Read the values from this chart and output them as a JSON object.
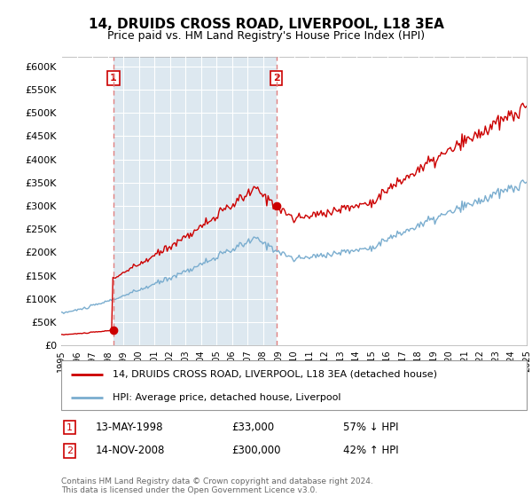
{
  "title": "14, DRUIDS CROSS ROAD, LIVERPOOL, L18 3EA",
  "subtitle": "Price paid vs. HM Land Registry's House Price Index (HPI)",
  "ylim": [
    0,
    620000
  ],
  "yticks": [
    0,
    50000,
    100000,
    150000,
    200000,
    250000,
    300000,
    350000,
    400000,
    450000,
    500000,
    550000,
    600000
  ],
  "ytick_labels": [
    "£0",
    "£50K",
    "£100K",
    "£150K",
    "£200K",
    "£250K",
    "£300K",
    "£350K",
    "£400K",
    "£450K",
    "£500K",
    "£550K",
    "£600K"
  ],
  "xlim_start": 1995,
  "xlim_end": 2025,
  "sale1_date": 1998.37,
  "sale1_price": 33000,
  "sale2_date": 2008.87,
  "sale2_price": 300000,
  "legend_line1": "14, DRUIDS CROSS ROAD, LIVERPOOL, L18 3EA (detached house)",
  "legend_line2": "HPI: Average price, detached house, Liverpool",
  "ann1_date": "13-MAY-1998",
  "ann1_price": "£33,000",
  "ann1_hpi": "57% ↓ HPI",
  "ann2_date": "14-NOV-2008",
  "ann2_price": "£300,000",
  "ann2_hpi": "42% ↑ HPI",
  "footer": "Contains HM Land Registry data © Crown copyright and database right 2024.\nThis data is licensed under the Open Government Licence v3.0.",
  "sale_color": "#cc0000",
  "hpi_color": "#7aadcf",
  "vline_color": "#e08080",
  "box_color": "#cc0000",
  "shade_color": "#dde8f0",
  "bg_color": "#f5f5f5"
}
